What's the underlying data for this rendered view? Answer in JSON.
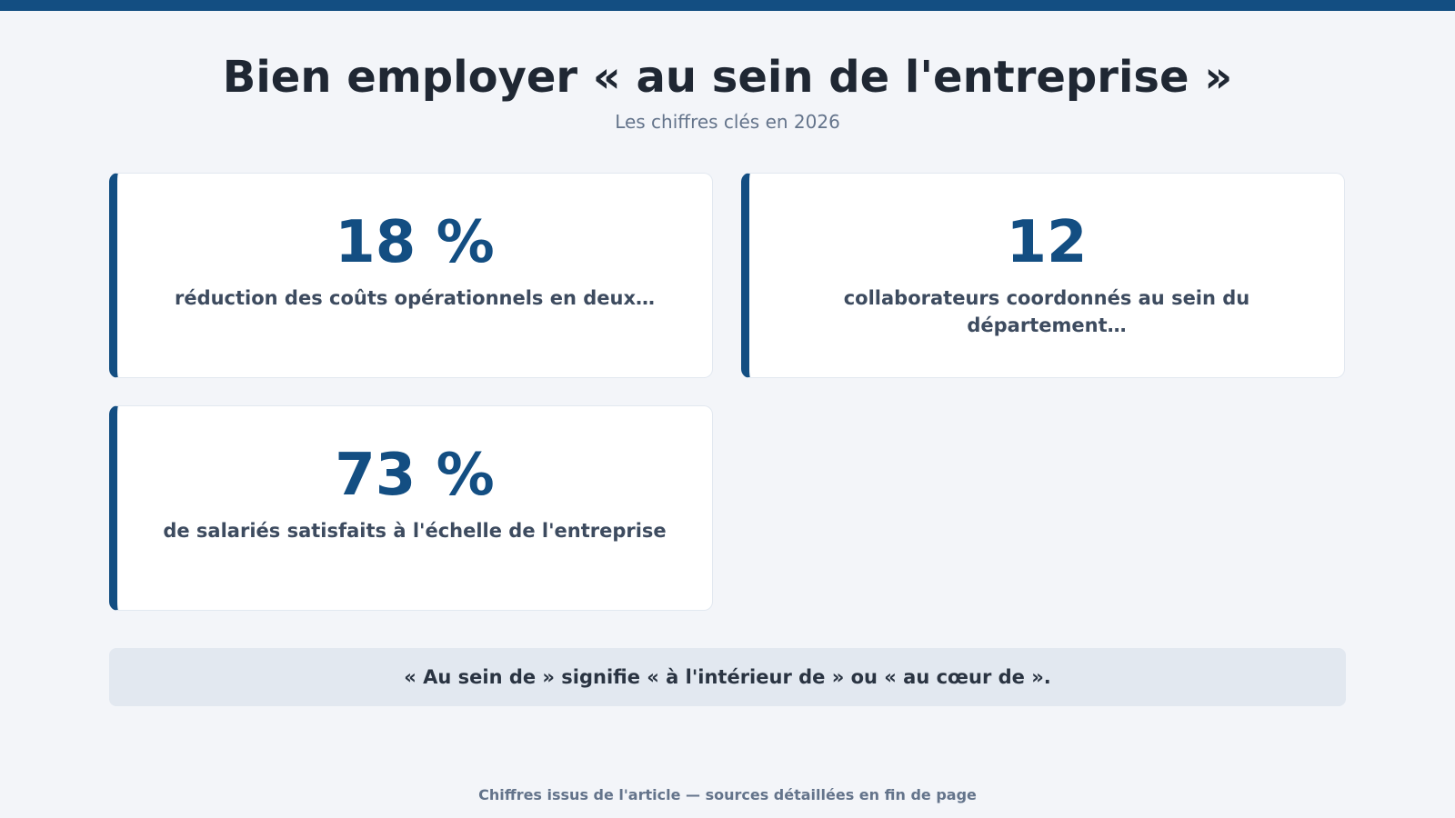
{
  "header": {
    "title": "Bien employer « au sein de l'entreprise »",
    "subtitle": "Les chiffres clés en 2026"
  },
  "stats": [
    {
      "value": "18 %",
      "label": "réduction des coûts opérationnels en deux…"
    },
    {
      "value": "12",
      "label": "collaborateurs coordonnés au sein du département…"
    },
    {
      "value": "73 %",
      "label": "de salariés satisfaits à l'échelle de l'entreprise"
    }
  ],
  "note": "« Au sein de » signifie « à l'intérieur de » ou « au cœur de ».",
  "footer": "Chiffres issus de l'article — sources détaillées en fin de page",
  "colors": {
    "accent": "#134e82",
    "background": "#f3f5f9",
    "card": "#ffffff",
    "note_background": "#e2e8f0"
  }
}
